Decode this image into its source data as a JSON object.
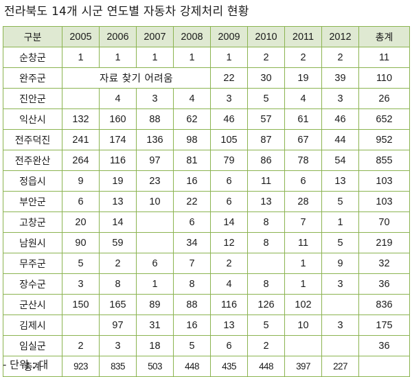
{
  "title": "전라북도 14개 시군 연도별 자동차 강제처리 현황",
  "columns": [
    "구분",
    "2005",
    "2006",
    "2007",
    "2008",
    "2009",
    "2010",
    "2011",
    "2012",
    "총계"
  ],
  "rows": [
    {
      "name": "순창군",
      "cells": [
        "1",
        "1",
        "1",
        "1",
        "1",
        "2",
        "2",
        "2",
        "11"
      ]
    },
    {
      "name": "완주군",
      "merged_note": "자료 찾기 어려움",
      "cells": [
        "22",
        "30",
        "19",
        "39",
        "110"
      ]
    },
    {
      "name": "진안군",
      "cells": [
        "",
        "4",
        "3",
        "4",
        "3",
        "5",
        "4",
        "3",
        "26"
      ]
    },
    {
      "name": "익산시",
      "cells": [
        "132",
        "160",
        "88",
        "62",
        "46",
        "57",
        "61",
        "46",
        "652"
      ]
    },
    {
      "name": "전주덕진",
      "cells": [
        "241",
        "174",
        "136",
        "98",
        "105",
        "87",
        "67",
        "44",
        "952"
      ]
    },
    {
      "name": "전주완산",
      "cells": [
        "264",
        "116",
        "97",
        "81",
        "79",
        "86",
        "78",
        "54",
        "855"
      ]
    },
    {
      "name": "정읍시",
      "cells": [
        "9",
        "19",
        "23",
        "16",
        "6",
        "11",
        "6",
        "13",
        "103"
      ]
    },
    {
      "name": "부안군",
      "cells": [
        "6",
        "13",
        "10",
        "22",
        "6",
        "13",
        "28",
        "5",
        "103"
      ]
    },
    {
      "name": "고창군",
      "cells": [
        "20",
        "14",
        "",
        "6",
        "14",
        "8",
        "7",
        "1",
        "70"
      ]
    },
    {
      "name": "남원시",
      "cells": [
        "90",
        "59",
        "",
        "34",
        "12",
        "8",
        "11",
        "5",
        "219"
      ]
    },
    {
      "name": "무주군",
      "cells": [
        "5",
        "2",
        "6",
        "7",
        "2",
        "",
        "1",
        "9",
        "32"
      ]
    },
    {
      "name": "장수군",
      "cells": [
        "3",
        "8",
        "1",
        "8",
        "4",
        "8",
        "1",
        "3",
        "36"
      ]
    },
    {
      "name": "군산시",
      "cells": [
        "150",
        "165",
        "89",
        "88",
        "116",
        "126",
        "102",
        "",
        "836"
      ]
    },
    {
      "name": "김제시",
      "cells": [
        "",
        "97",
        "31",
        "16",
        "13",
        "5",
        "10",
        "3",
        "175"
      ]
    },
    {
      "name": "임실군",
      "cells": [
        "2",
        "3",
        "18",
        "5",
        "6",
        "2",
        "",
        "",
        "36"
      ]
    }
  ],
  "total": {
    "name": "총계",
    "cells": [
      "923",
      "835",
      "503",
      "448",
      "435",
      "448",
      "397",
      "227",
      ""
    ]
  },
  "note": "- 단위 : 대"
}
